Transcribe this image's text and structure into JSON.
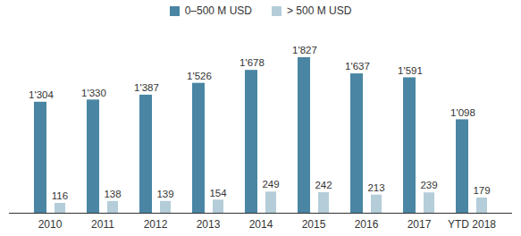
{
  "chart_data": {
    "type": "bar",
    "categories": [
      "2010",
      "2011",
      "2012",
      "2013",
      "2014",
      "2015",
      "2016",
      "2017",
      "YTD 2018"
    ],
    "series": [
      {
        "name": "0–500 M USD",
        "color": "#4a86a3",
        "values": [
          1304,
          1330,
          1387,
          1526,
          1678,
          1827,
          1637,
          1591,
          1098
        ],
        "value_labels": [
          "1'304",
          "1'330",
          "1'387",
          "1'526",
          "1'678",
          "1'827",
          "1'637",
          "1'591",
          "1'098"
        ]
      },
      {
        "name": "> 500 M USD",
        "color": "#b4cdd9",
        "values": [
          116,
          138,
          139,
          154,
          249,
          242,
          213,
          239,
          179
        ],
        "value_labels": [
          "116",
          "138",
          "139",
          "154",
          "249",
          "242",
          "213",
          "239",
          "179"
        ]
      }
    ],
    "ylim": [
      0,
      2100
    ],
    "legend": "top",
    "data_labels": true,
    "tick_labels": "x"
  }
}
